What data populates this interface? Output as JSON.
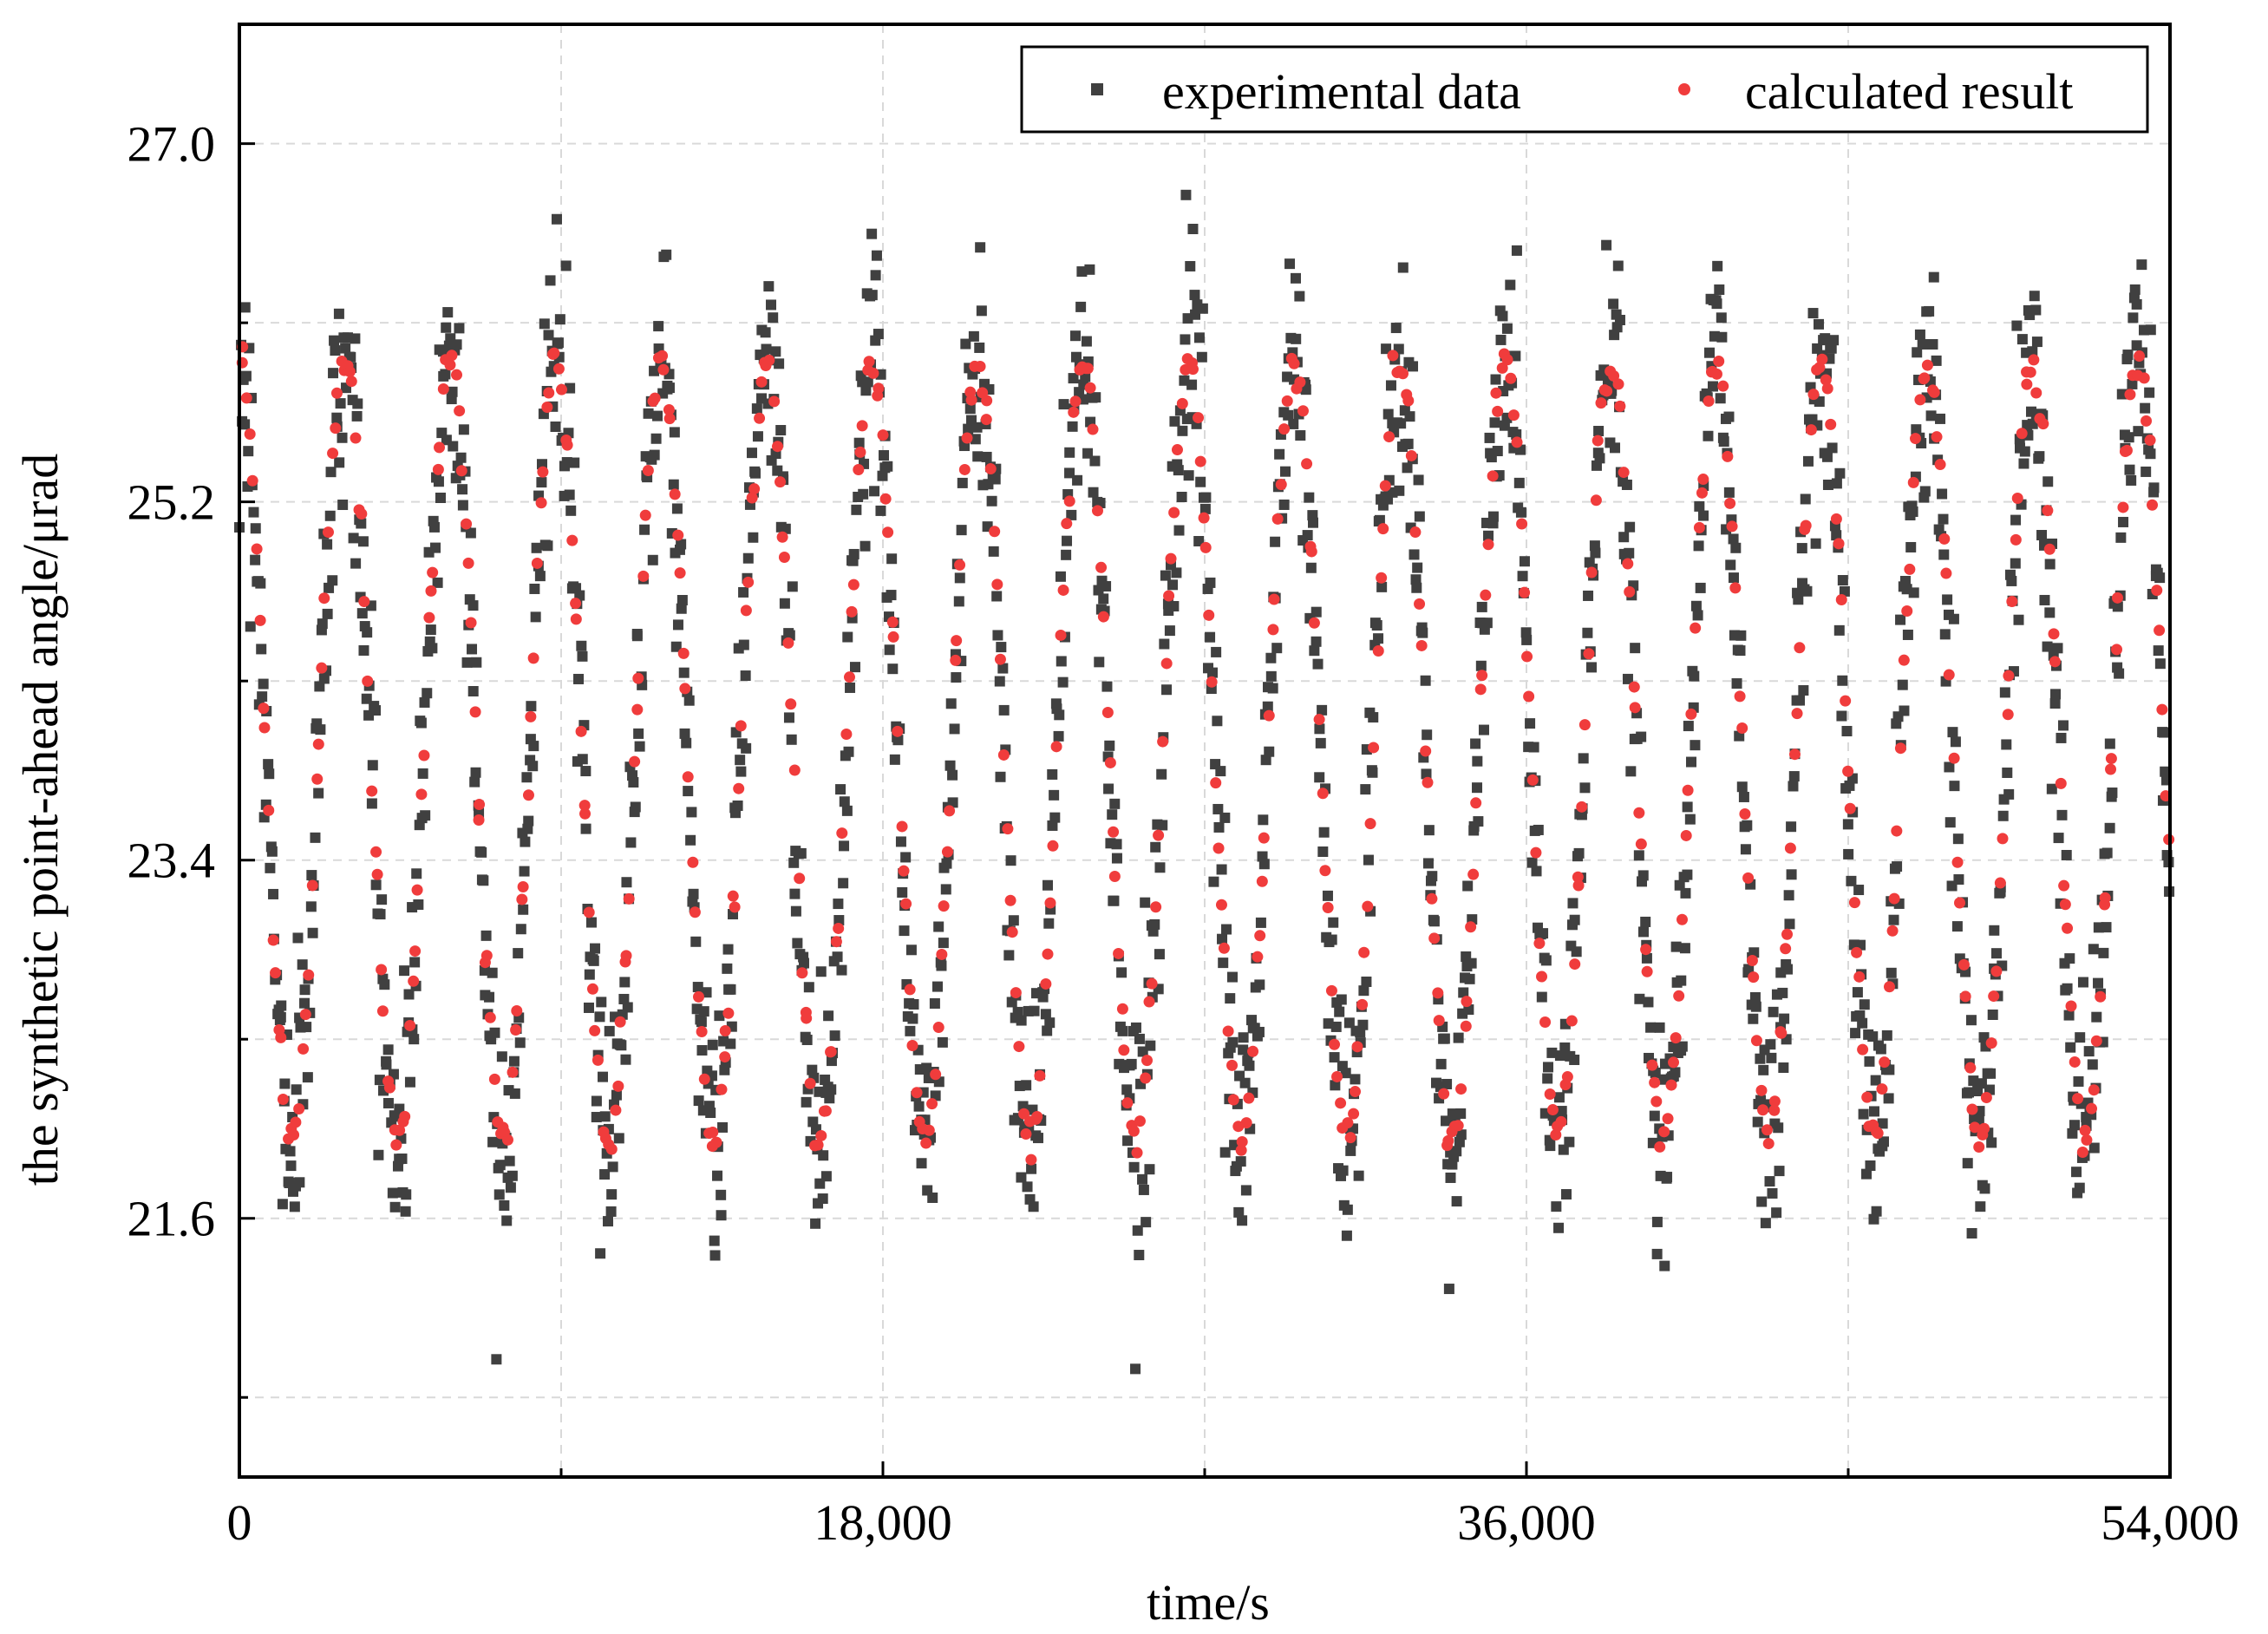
{
  "chart_data": {
    "type": "scatter",
    "title": "",
    "xlabel": "time/s",
    "ylabel": "the synthetic point-ahead angle/μrad",
    "xlim": [
      0,
      54000
    ],
    "ylim": [
      20.3,
      27.6
    ],
    "xticks": [
      0,
      18000,
      36000,
      54000
    ],
    "xtick_labels": [
      "0",
      "18,000",
      "36,000",
      "54,000"
    ],
    "x_minor_ticks": [
      9000,
      27000,
      45000
    ],
    "yticks": [
      21.6,
      23.4,
      25.2,
      27.0
    ],
    "ytick_labels": [
      "21.6",
      "23.4",
      "25.2",
      "27.0"
    ],
    "y_minor_ticks": [
      20.7,
      22.5,
      24.3,
      26.1
    ],
    "grid": true,
    "legend_position": "top-right",
    "signal": {
      "description_of_shape": "periodic oscillation",
      "period_s": 2950,
      "mean": 23.95,
      "amplitude": 1.95,
      "peak_time_s": 0
    },
    "series": [
      {
        "name": "experimental data",
        "marker": "square",
        "color": "#404040",
        "points_count": 1800,
        "noise_sd": 0.3
      },
      {
        "name": "calculated result",
        "marker": "circle",
        "color": "#f03c3c",
        "points_count": 620,
        "noise_sd": 0.05
      }
    ]
  }
}
